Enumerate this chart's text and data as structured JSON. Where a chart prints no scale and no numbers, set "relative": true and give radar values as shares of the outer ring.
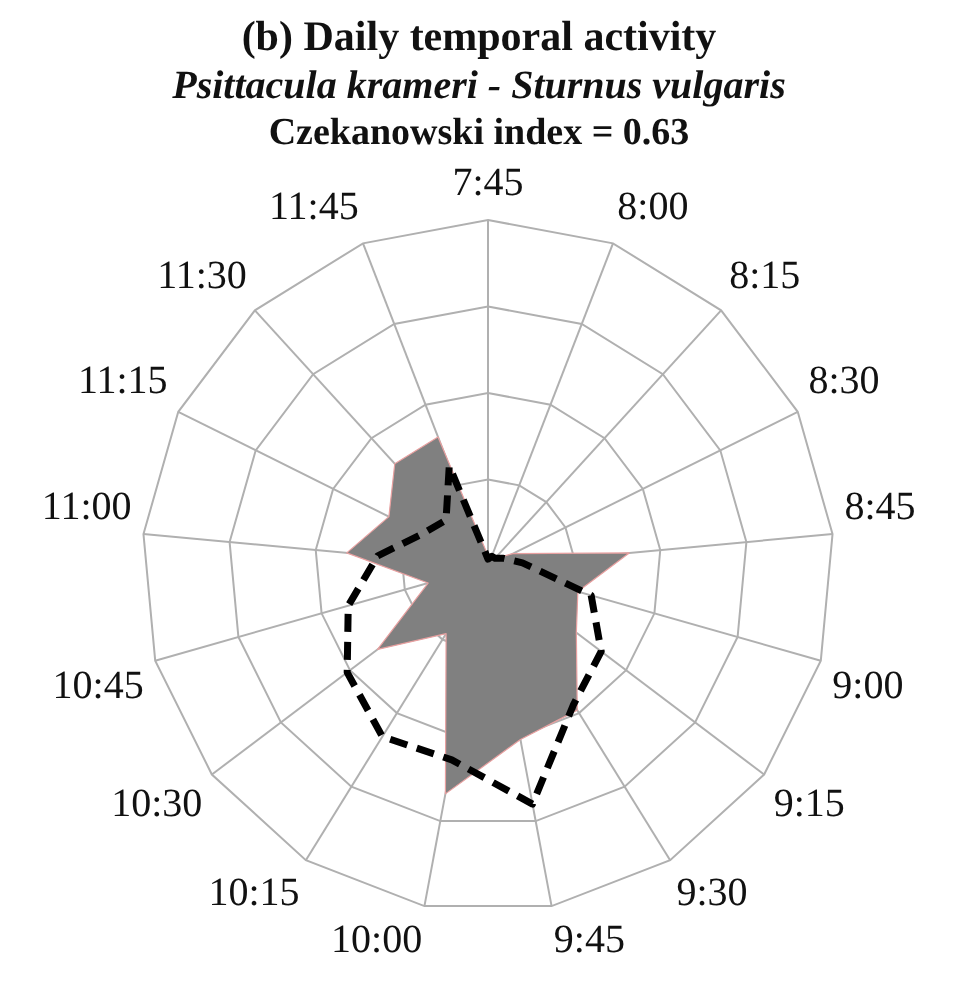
{
  "chart_data": {
    "type": "radar",
    "title": "(b) Daily temporal activity",
    "subtitle": "Psittacula krameri - Sturnus vulgaris",
    "annotations": [
      "Czekanowski index = 0.63"
    ],
    "categories": [
      "7:45",
      "8:00",
      "8:15",
      "8:30",
      "8:45",
      "9:00",
      "9:15",
      "9:30",
      "9:45",
      "10:00",
      "10:15",
      "10:30",
      "10:45",
      "11:00",
      "11:15",
      "11:30",
      "11:45"
    ],
    "relative": true,
    "grid": true,
    "legend": false,
    "marker": "none",
    "series": [
      {
        "type": "area",
        "color": "#808080",
        "values": [
          0.03,
          0.03,
          0.03,
          0.08,
          0.41,
          0.27,
          0.32,
          0.49,
          0.51,
          0.67,
          0.23,
          0.4,
          0.18,
          0.41,
          0.32,
          0.4,
          0.4
        ]
      },
      {
        "line_style": "dashed",
        "color": "#000000",
        "values": [
          0.02,
          0.03,
          0.03,
          0.05,
          0.1,
          0.31,
          0.41,
          0.47,
          0.7,
          0.57,
          0.58,
          0.51,
          0.42,
          0.32,
          0.21,
          0.18,
          0.31
        ]
      }
    ]
  }
}
